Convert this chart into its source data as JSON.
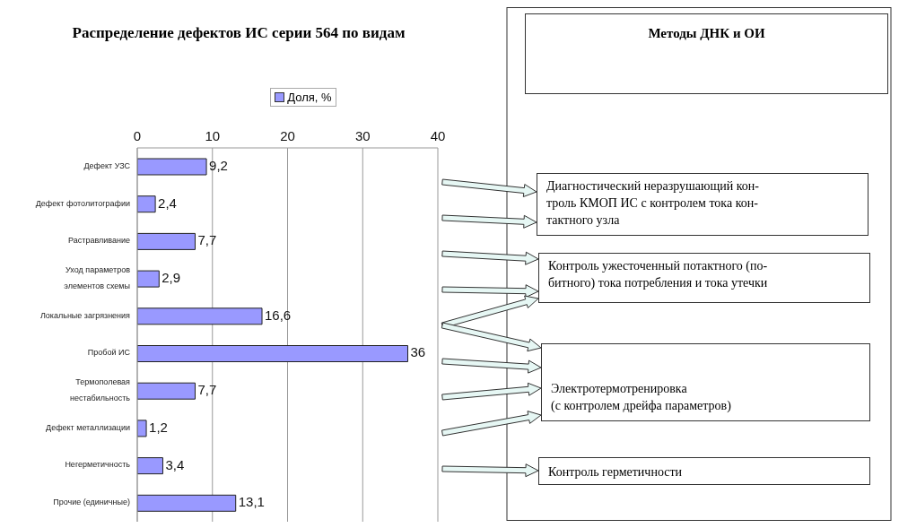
{
  "chart_data": {
    "type": "bar",
    "orientation": "horizontal",
    "title": "Распределение дефектов ИС серии 564 по видам",
    "categories": [
      "Дефект УЗС",
      "Дефект фотолитографии",
      "Растравливание",
      "Уход параметров элементов схемы",
      "Локальные загрязнения",
      "Пробой ИС",
      "Термополевая нестабильность",
      "Дефект металлизации",
      "Негерметичность",
      "Прочие (единичные)"
    ],
    "series": [
      {
        "name": "Доля, %",
        "color": "#9999ff",
        "values": [
          9.2,
          2.4,
          7.7,
          2.9,
          16.6,
          36,
          7.7,
          1.2,
          3.4,
          13.1
        ],
        "value_labels": [
          "9,2",
          "2,4",
          "7,7",
          "2,9",
          "16,6",
          "36",
          "7,7",
          "1,2",
          "3,4",
          "13,1"
        ]
      }
    ],
    "xlim": [
      0,
      40
    ],
    "xticks": [
      0,
      10,
      20,
      30,
      40
    ],
    "grid": "x",
    "legend": "top",
    "annotations": [
      "Методы ДНК и ОИ",
      "Диагностический неразрушающий кон-\nтроль КМОП ИС с контролем тока кон-\nтактного узла",
      "Контроль ужесточенный потактного (по-\nбитного) тока потребления и тока утечки",
      "Электротермотренировка\n(с контролем дрейфа параметров)",
      "Контроль герметичности"
    ]
  }
}
